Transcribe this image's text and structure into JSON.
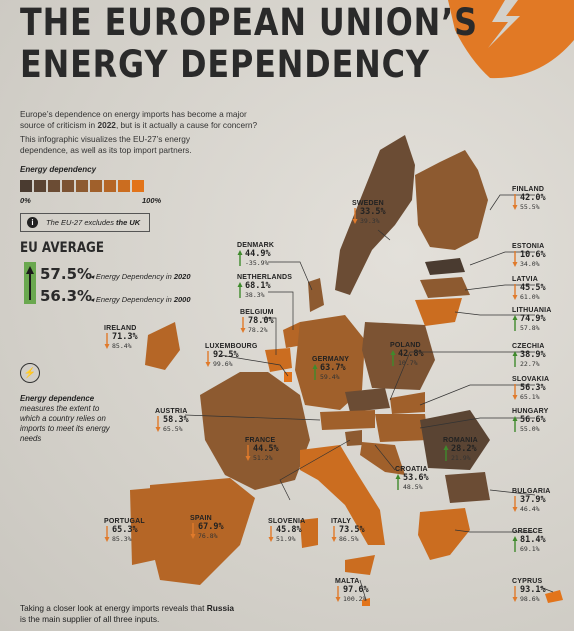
{
  "title": {
    "line1": "THE EUROPEAN UNION’S",
    "line2": "ENERGY DEPENDENCY"
  },
  "intro": {
    "p1_a": "Europe’s dependence on energy imports has become a major source of criticism in ",
    "p1_year": "2022",
    "p1_b": ", but is it actually a cause for concern?",
    "p2": "This infographic visualizes the EU-27’s energy dependence, as well as its top import partners."
  },
  "legend": {
    "title": "Energy dependency",
    "min": "0%",
    "max": "100%",
    "colors": [
      "#4a3b30",
      "#5a4433",
      "#6b4c34",
      "#7c5333",
      "#8d5a30",
      "#a0602b",
      "#b56626",
      "#cb6d20",
      "#e2741b"
    ]
  },
  "note": {
    "icon": "info-icon",
    "text": "The EU-27 excludes ",
    "bold": "the UK"
  },
  "eu_average": {
    "title": "EU AVERAGE",
    "value_2020": "57.5%",
    "label_2020": "Energy Dependency in ",
    "year_2020": "2020",
    "value_2000": "56.3%",
    "label_2000": "Energy Dependency in ",
    "year_2000": "2000"
  },
  "definition": {
    "icon": "energy-dependence-icon",
    "bold": "Energy dependence",
    "rest": "measures the extent to which a country relies on imports to meet its energy needs"
  },
  "footer": {
    "a": "Taking a closer look at energy imports reveals that ",
    "bold": "Russia",
    "b": "is the main supplier of all three inputs."
  },
  "countries": [
    {
      "name": "FINLAND",
      "v2020": "42.0%",
      "v2000": "55.5%",
      "dir": "down"
    },
    {
      "name": "SWEDEN",
      "v2020": "33.5%",
      "v2000": "39.3%",
      "dir": "down"
    },
    {
      "name": "DENMARK",
      "v2020": "44.9%",
      "v2000": "-35.9%",
      "dir": "up"
    },
    {
      "name": "ESTONIA",
      "v2020": "10.6%",
      "v2000": "34.0%",
      "dir": "down"
    },
    {
      "name": "NETHERLANDS",
      "v2020": "68.1%",
      "v2000": "38.3%",
      "dir": "up"
    },
    {
      "name": "LATVIA",
      "v2020": "45.5%",
      "v2000": "61.0%",
      "dir": "down"
    },
    {
      "name": "BELGIUM",
      "v2020": "78.0%",
      "v2000": "78.2%",
      "dir": "down"
    },
    {
      "name": "LITHUANIA",
      "v2020": "74.9%",
      "v2000": "57.8%",
      "dir": "up"
    },
    {
      "name": "IRELAND",
      "v2020": "71.3%",
      "v2000": "85.4%",
      "dir": "down"
    },
    {
      "name": "LUXEMBOURG",
      "v2020": "92.5%",
      "v2000": "99.6%",
      "dir": "down"
    },
    {
      "name": "GERMANY",
      "v2020": "63.7%",
      "v2000": "59.4%",
      "dir": "up"
    },
    {
      "name": "POLAND",
      "v2020": "42.8%",
      "v2000": "10.7%",
      "dir": "up"
    },
    {
      "name": "CZECHIA",
      "v2020": "38.9%",
      "v2000": "22.7%",
      "dir": "up"
    },
    {
      "name": "SLOVAKIA",
      "v2020": "56.3%",
      "v2000": "65.1%",
      "dir": "down"
    },
    {
      "name": "AUSTRIA",
      "v2020": "58.3%",
      "v2000": "65.5%",
      "dir": "down"
    },
    {
      "name": "HUNGARY",
      "v2020": "56.6%",
      "v2000": "55.0%",
      "dir": "up"
    },
    {
      "name": "FRANCE",
      "v2020": "44.5%",
      "v2000": "51.2%",
      "dir": "down"
    },
    {
      "name": "ROMANIA",
      "v2020": "28.2%",
      "v2000": "21.9%",
      "dir": "up"
    },
    {
      "name": "CROATIA",
      "v2020": "53.6%",
      "v2000": "48.5%",
      "dir": "up"
    },
    {
      "name": "BULGARIA",
      "v2020": "37.9%",
      "v2000": "46.4%",
      "dir": "down"
    },
    {
      "name": "PORTUGAL",
      "v2020": "65.3%",
      "v2000": "85.3%",
      "dir": "down"
    },
    {
      "name": "SPAIN",
      "v2020": "67.9%",
      "v2000": "76.8%",
      "dir": "down"
    },
    {
      "name": "SLOVENIA",
      "v2020": "45.8%",
      "v2000": "51.9%",
      "dir": "down"
    },
    {
      "name": "ITALY",
      "v2020": "73.5%",
      "v2000": "86.5%",
      "dir": "down"
    },
    {
      "name": "GREECE",
      "v2020": "81.4%",
      "v2000": "69.1%",
      "dir": "up"
    },
    {
      "name": "MALTA",
      "v2020": "97.6%",
      "v2000": "100.2%",
      "dir": "down"
    },
    {
      "name": "CYPRUS",
      "v2020": "93.1%",
      "v2000": "98.6%",
      "dir": "down"
    }
  ]
}
